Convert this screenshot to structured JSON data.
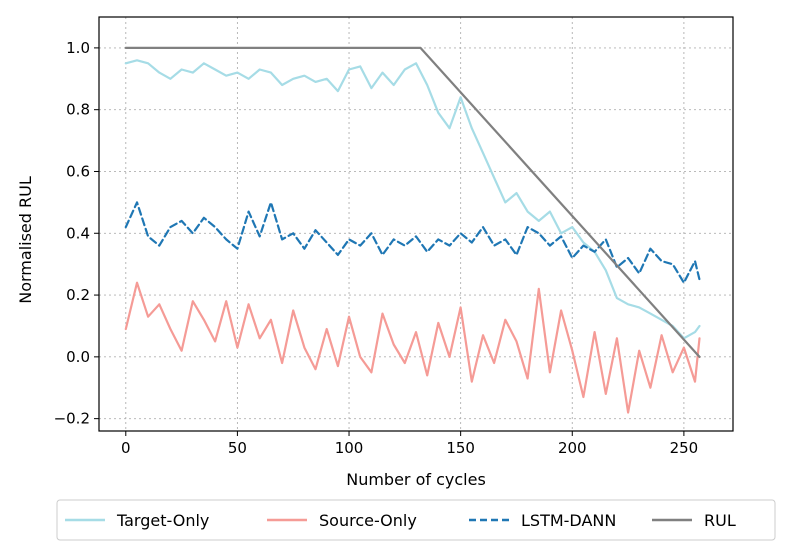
{
  "chart_data": {
    "type": "line",
    "title": "",
    "xlabel": "Number of cycles",
    "ylabel": "Normalised RUL",
    "xlim": [
      -12,
      272
    ],
    "ylim": [
      -0.24,
      1.1
    ],
    "xticks": [
      0,
      50,
      100,
      150,
      200,
      250
    ],
    "xtick_labels": [
      "0",
      "50",
      "100",
      "150",
      "200",
      "250"
    ],
    "yticks": [
      -0.2,
      0.0,
      0.2,
      0.4,
      0.6,
      0.8,
      1.0
    ],
    "ytick_labels": [
      "−0.2",
      "0.0",
      "0.2",
      "0.4",
      "0.6",
      "0.8",
      "1.0"
    ],
    "grid": true,
    "legend_position": "below the plot",
    "x": [
      0,
      5,
      10,
      15,
      20,
      25,
      30,
      35,
      40,
      45,
      50,
      55,
      60,
      65,
      70,
      75,
      80,
      85,
      90,
      95,
      100,
      105,
      110,
      115,
      120,
      125,
      130,
      135,
      140,
      145,
      150,
      155,
      160,
      165,
      170,
      175,
      180,
      185,
      190,
      195,
      200,
      205,
      210,
      215,
      220,
      225,
      230,
      235,
      240,
      245,
      250,
      255,
      257
    ],
    "series": [
      {
        "name": "Target-Only",
        "color": "#a6dce6",
        "style": "solid",
        "values": [
          0.95,
          0.96,
          0.95,
          0.92,
          0.9,
          0.93,
          0.92,
          0.95,
          0.93,
          0.91,
          0.92,
          0.9,
          0.93,
          0.92,
          0.88,
          0.9,
          0.91,
          0.89,
          0.9,
          0.86,
          0.93,
          0.94,
          0.87,
          0.92,
          0.88,
          0.93,
          0.95,
          0.88,
          0.79,
          0.74,
          0.84,
          0.74,
          0.66,
          0.58,
          0.5,
          0.53,
          0.47,
          0.44,
          0.47,
          0.4,
          0.42,
          0.37,
          0.34,
          0.28,
          0.19,
          0.17,
          0.16,
          0.14,
          0.12,
          0.1,
          0.06,
          0.08,
          0.1
        ]
      },
      {
        "name": "Source-Only",
        "color": "#f59b96",
        "style": "solid",
        "values": [
          0.09,
          0.24,
          0.13,
          0.17,
          0.09,
          0.02,
          0.18,
          0.12,
          0.05,
          0.18,
          0.03,
          0.17,
          0.06,
          0.12,
          -0.02,
          0.15,
          0.03,
          -0.04,
          0.09,
          -0.03,
          0.13,
          0.0,
          -0.05,
          0.14,
          0.04,
          -0.02,
          0.08,
          -0.06,
          0.11,
          0.0,
          0.16,
          -0.08,
          0.07,
          -0.02,
          0.12,
          0.05,
          -0.07,
          0.22,
          -0.05,
          0.15,
          0.02,
          -0.13,
          0.08,
          -0.12,
          0.06,
          -0.18,
          0.02,
          -0.1,
          0.07,
          -0.05,
          0.03,
          -0.08,
          0.06
        ]
      },
      {
        "name": "LSTM-DANN",
        "color": "#1f77b4",
        "style": "dashed",
        "values": [
          0.42,
          0.5,
          0.39,
          0.36,
          0.42,
          0.44,
          0.4,
          0.45,
          0.42,
          0.38,
          0.35,
          0.47,
          0.39,
          0.5,
          0.38,
          0.4,
          0.35,
          0.41,
          0.37,
          0.33,
          0.38,
          0.36,
          0.4,
          0.33,
          0.38,
          0.36,
          0.39,
          0.34,
          0.38,
          0.36,
          0.4,
          0.37,
          0.42,
          0.36,
          0.38,
          0.33,
          0.42,
          0.4,
          0.36,
          0.39,
          0.32,
          0.36,
          0.34,
          0.38,
          0.29,
          0.32,
          0.27,
          0.35,
          0.31,
          0.3,
          0.24,
          0.31,
          0.25
        ]
      },
      {
        "name": "RUL",
        "color": "#808080",
        "style": "solid",
        "x": [
          0,
          132,
          257
        ],
        "values": [
          1.0,
          1.0,
          0.0
        ]
      }
    ]
  }
}
